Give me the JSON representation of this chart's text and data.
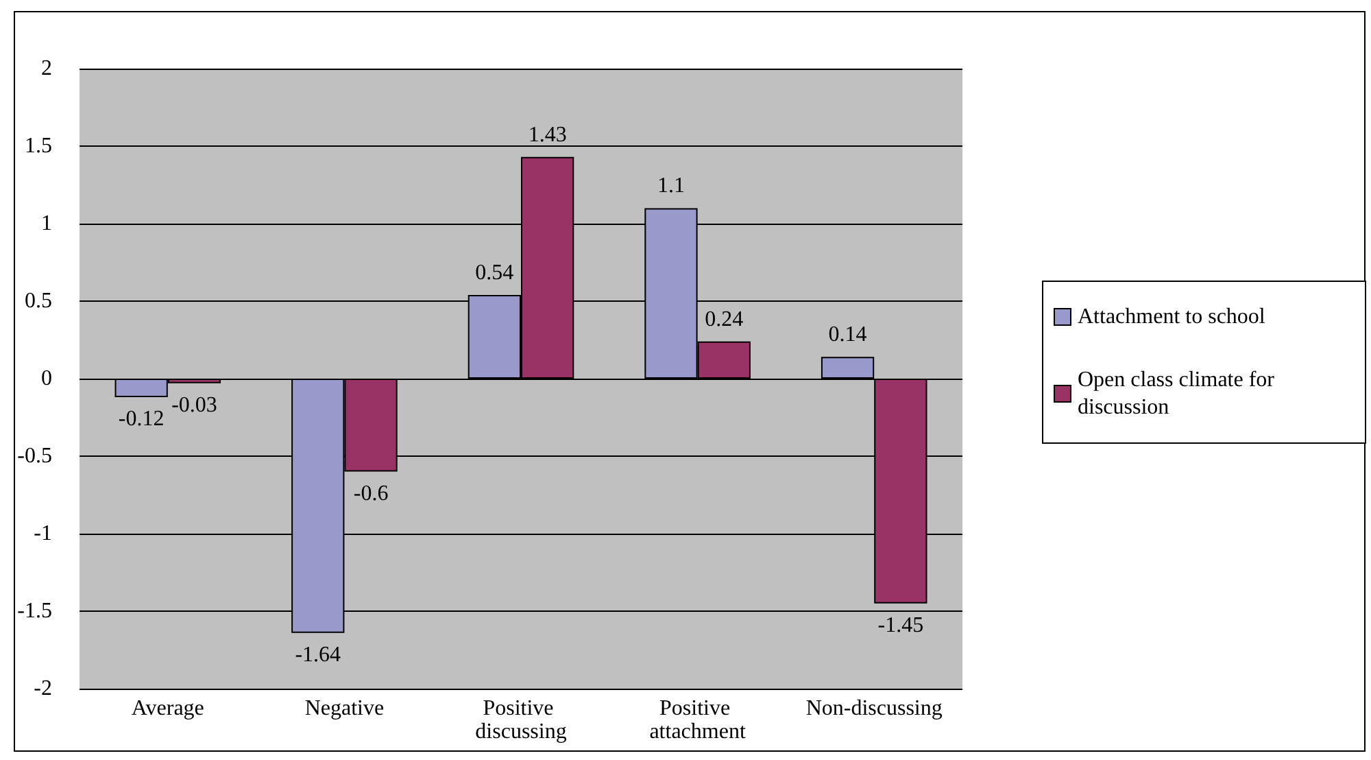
{
  "chart_data": {
    "type": "bar",
    "categories": [
      "Average",
      "Negative",
      "Positive discussing",
      "Positive attachment",
      "Non-discussing"
    ],
    "series": [
      {
        "name": "Attachment to school",
        "color": "#9999cc",
        "values": [
          -0.12,
          -1.64,
          0.54,
          1.1,
          0.14
        ]
      },
      {
        "name": "Open class climate for discussion",
        "color": "#993366",
        "values": [
          -0.03,
          -0.6,
          1.43,
          0.24,
          -1.45
        ]
      }
    ],
    "ylim": [
      -2,
      2
    ],
    "yticks": [
      -2,
      -1.5,
      -1,
      -0.5,
      0,
      0.5,
      1,
      1.5,
      2
    ],
    "grid": "y",
    "legend": "right",
    "data_labels": true
  }
}
